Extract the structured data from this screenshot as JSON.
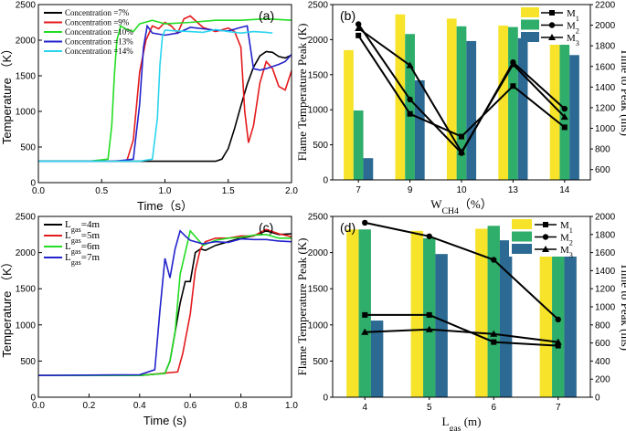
{
  "figure": {
    "panels": [
      "(a)",
      "(b)",
      "(c)",
      "(d)"
    ]
  },
  "chart_data": [
    {
      "id": "a",
      "type": "line",
      "label": "(a)",
      "xlabel": "Time（s）",
      "ylabel": "Temperature （K）",
      "xlim": [
        0,
        2.0
      ],
      "ylim": [
        0,
        2500
      ],
      "xticks": [
        "0.0",
        "0.5",
        "1.0",
        "1.5",
        "2.0"
      ],
      "yticks": [
        "0",
        "500",
        "1000",
        "1500",
        "2000",
        "2500"
      ],
      "legend_position": "top-left",
      "series": [
        {
          "name": "Concentration =7%",
          "color": "#000000",
          "x": [
            0,
            0.2,
            0.4,
            0.6,
            0.8,
            1.0,
            1.2,
            1.4,
            1.45,
            1.5,
            1.55,
            1.6,
            1.65,
            1.7,
            1.75,
            1.8,
            1.85,
            1.9,
            1.95,
            2.0
          ],
          "y": [
            300,
            300,
            300,
            300,
            300,
            300,
            300,
            300,
            330,
            480,
            760,
            1080,
            1380,
            1620,
            1780,
            1840,
            1830,
            1770,
            1750,
            1790
          ]
        },
        {
          "name": "Concentration =9%",
          "color": "#e41a1c",
          "x": [
            0,
            0.5,
            0.7,
            0.75,
            0.8,
            0.85,
            0.9,
            0.95,
            1.0,
            1.05,
            1.1,
            1.15,
            1.2,
            1.3,
            1.4,
            1.5,
            1.55,
            1.6,
            1.63,
            1.66,
            1.7,
            1.75,
            1.8,
            1.85,
            1.9,
            1.95,
            2.0
          ],
          "y": [
            300,
            300,
            310,
            600,
            1550,
            2000,
            2200,
            2160,
            2250,
            2200,
            2100,
            2300,
            2340,
            2180,
            2120,
            2170,
            2120,
            1900,
            1000,
            560,
            800,
            1400,
            1700,
            1600,
            1350,
            1300,
            1570
          ]
        },
        {
          "name": "Concentration =10%",
          "color": "#22dd22",
          "x": [
            0,
            0.4,
            0.55,
            0.58,
            0.6,
            0.62,
            0.65,
            0.7,
            0.75,
            0.8,
            0.9,
            1.0,
            1.2,
            1.4,
            1.6,
            1.8,
            2.0
          ],
          "y": [
            300,
            300,
            330,
            800,
            1500,
            2000,
            2200,
            2150,
            2120,
            2230,
            2280,
            2230,
            2250,
            2280,
            2280,
            2300,
            2280
          ]
        },
        {
          "name": "Concentration =13%",
          "color": "#2222cc",
          "x": [
            0,
            0.6,
            0.75,
            0.8,
            0.83,
            0.86,
            0.9,
            1.0,
            1.1,
            1.2,
            1.3,
            1.4,
            1.5,
            1.6,
            1.65,
            1.7,
            1.75,
            1.8,
            1.85,
            1.9,
            1.95,
            2.0
          ],
          "y": [
            300,
            300,
            330,
            1100,
            1900,
            2200,
            2100,
            2070,
            2100,
            2180,
            2160,
            2140,
            2130,
            2180,
            2200,
            1600,
            1580,
            1600,
            1630,
            1660,
            1700,
            1800
          ]
        },
        {
          "name": "Concentration =14%",
          "color": "#2ad4ee",
          "x": [
            0,
            0.8,
            0.9,
            0.94,
            0.96,
            0.98,
            1.0,
            1.1,
            1.2,
            1.3,
            1.4,
            1.5,
            1.6,
            1.7,
            1.8,
            1.85
          ],
          "y": [
            300,
            300,
            330,
            900,
            1650,
            2050,
            2140,
            2130,
            2120,
            2110,
            2150,
            2120,
            2100,
            2120,
            2110,
            2100
          ]
        }
      ]
    },
    {
      "id": "b",
      "type": "bar",
      "label": "(b)",
      "xlabel": "W",
      "xlabel_sub": "CH4",
      "xlabel_unit": "（%）",
      "ylabel": "Flame Temperature Peak (K)",
      "ylabel_right": "Time to Peak  (ms)",
      "categories": [
        "7",
        "9",
        "10",
        "13",
        "14"
      ],
      "ylim": [
        0,
        2500
      ],
      "yticks": [
        "0",
        "500",
        "1000",
        "1500",
        "2000",
        "2500"
      ],
      "ylim_right": [
        500,
        2200
      ],
      "yticks_right": [
        "600",
        "800",
        "1000",
        "1200",
        "1400",
        "1600",
        "1800",
        "2000",
        "2200"
      ],
      "bar_series": [
        {
          "name": "M1",
          "color": "#f6e32a",
          "values": [
            1850,
            2360,
            2300,
            2200,
            2220
          ]
        },
        {
          "name": "M2",
          "color": "#2fad6a",
          "values": [
            990,
            2080,
            2190,
            2180,
            2240
          ]
        },
        {
          "name": "M3",
          "color": "#2c6a93",
          "values": [
            310,
            1420,
            1980,
            2020,
            1780
          ]
        }
      ],
      "line_series": [
        {
          "name": "M",
          "sub": "1",
          "marker": "square",
          "values": [
            1900,
            1140,
            920,
            1410,
            1010
          ]
        },
        {
          "name": "M",
          "sub": "2",
          "marker": "circle",
          "values": [
            2010,
            1280,
            760,
            1640,
            1190
          ]
        },
        {
          "name": "M",
          "sub": "3",
          "marker": "triangle",
          "values": [
            1970,
            1610,
            770,
            1620,
            1110
          ]
        }
      ],
      "legend_position": "top-right"
    },
    {
      "id": "c",
      "type": "line",
      "label": "(c)",
      "xlabel": "Time (s)",
      "ylabel": "Temperature （K）",
      "xlim": [
        0,
        1.0
      ],
      "ylim": [
        0,
        2500
      ],
      "xticks": [
        "0.0",
        "0.2",
        "0.4",
        "0.6",
        "0.8",
        "1.0"
      ],
      "yticks": [
        "0",
        "500",
        "1000",
        "1500",
        "2000",
        "2500"
      ],
      "legend_position": "top-left",
      "series": [
        {
          "name": "L",
          "sub": "gas",
          "suffix": "=4m",
          "color": "#000000",
          "x": [
            0,
            0.4,
            0.5,
            0.52,
            0.54,
            0.56,
            0.58,
            0.6,
            0.62,
            0.64,
            0.66,
            0.7,
            0.75,
            0.8,
            0.85,
            0.9,
            0.95,
            1.0
          ],
          "y": [
            300,
            300,
            330,
            500,
            900,
            1300,
            1600,
            1600,
            2000,
            2050,
            2030,
            2100,
            2150,
            2200,
            2230,
            2300,
            2250,
            2260
          ]
        },
        {
          "name": "L",
          "sub": "gas",
          "suffix": "=5m",
          "color": "#e41a1c",
          "x": [
            0,
            0.4,
            0.55,
            0.57,
            0.6,
            0.62,
            0.64,
            0.66,
            0.7,
            0.75,
            0.8,
            0.85,
            0.9,
            0.95,
            1.0
          ],
          "y": [
            300,
            300,
            350,
            600,
            1150,
            1750,
            2050,
            2150,
            2200,
            2200,
            2230,
            2230,
            2320,
            2260,
            2220
          ]
        },
        {
          "name": "L",
          "sub": "gas",
          "suffix": "=6m",
          "color": "#22dd22",
          "x": [
            0,
            0.4,
            0.5,
            0.52,
            0.54,
            0.56,
            0.58,
            0.6,
            0.65,
            0.7,
            0.75,
            0.8,
            0.85,
            0.9,
            0.95,
            1.0
          ],
          "y": [
            300,
            300,
            330,
            500,
            900,
            1700,
            2000,
            2300,
            2100,
            2170,
            2200,
            2210,
            2240,
            2250,
            2200,
            2200
          ]
        },
        {
          "name": "L",
          "sub": "gas",
          "suffix": "=7m",
          "color": "#2222cc",
          "x": [
            0,
            0.4,
            0.46,
            0.48,
            0.5,
            0.52,
            0.54,
            0.56,
            0.58,
            0.6,
            0.65,
            0.7,
            0.75,
            0.8,
            0.85,
            0.9,
            0.95,
            1.0
          ],
          "y": [
            300,
            310,
            380,
            1200,
            1920,
            1650,
            2050,
            2300,
            2230,
            2170,
            2120,
            2150,
            2140,
            2190,
            2180,
            2180,
            2160,
            2150
          ]
        }
      ]
    },
    {
      "id": "d",
      "type": "bar",
      "label": "(d)",
      "xlabel": "L",
      "xlabel_sub": "gas",
      "xlabel_unit": " (m)",
      "ylabel": "Flame Temperature Peak (K)",
      "ylabel_right": "Time to Peak  (ms)",
      "categories": [
        "4",
        "5",
        "6",
        "7"
      ],
      "ylim": [
        0,
        2500
      ],
      "yticks": [
        "0",
        "500",
        "1000",
        "1500",
        "2000",
        "2500"
      ],
      "ylim_right": [
        0,
        2000
      ],
      "yticks_right": [
        "0",
        "200",
        "400",
        "600",
        "800",
        "1000",
        "1200",
        "1400",
        "1600",
        "1800",
        "2000"
      ],
      "bar_series": [
        {
          "name": "M1",
          "color": "#f6e32a",
          "values": [
            2320,
            2300,
            2330,
            2320
          ]
        },
        {
          "name": "M2",
          "color": "#2fad6a",
          "values": [
            2320,
            2200,
            2370,
            2220
          ]
        },
        {
          "name": "M3",
          "color": "#2c6a93",
          "values": [
            1060,
            1980,
            2170,
            2120
          ]
        }
      ],
      "line_series": [
        {
          "name": "M",
          "sub": "1",
          "marker": "square",
          "values": [
            910,
            910,
            610,
            570
          ]
        },
        {
          "name": "M",
          "sub": "2",
          "marker": "circle",
          "values": [
            1930,
            1780,
            1520,
            860
          ]
        },
        {
          "name": "M",
          "sub": "3",
          "marker": "triangle",
          "values": [
            720,
            750,
            700,
            610
          ]
        }
      ],
      "legend_position": "top-right"
    }
  ]
}
